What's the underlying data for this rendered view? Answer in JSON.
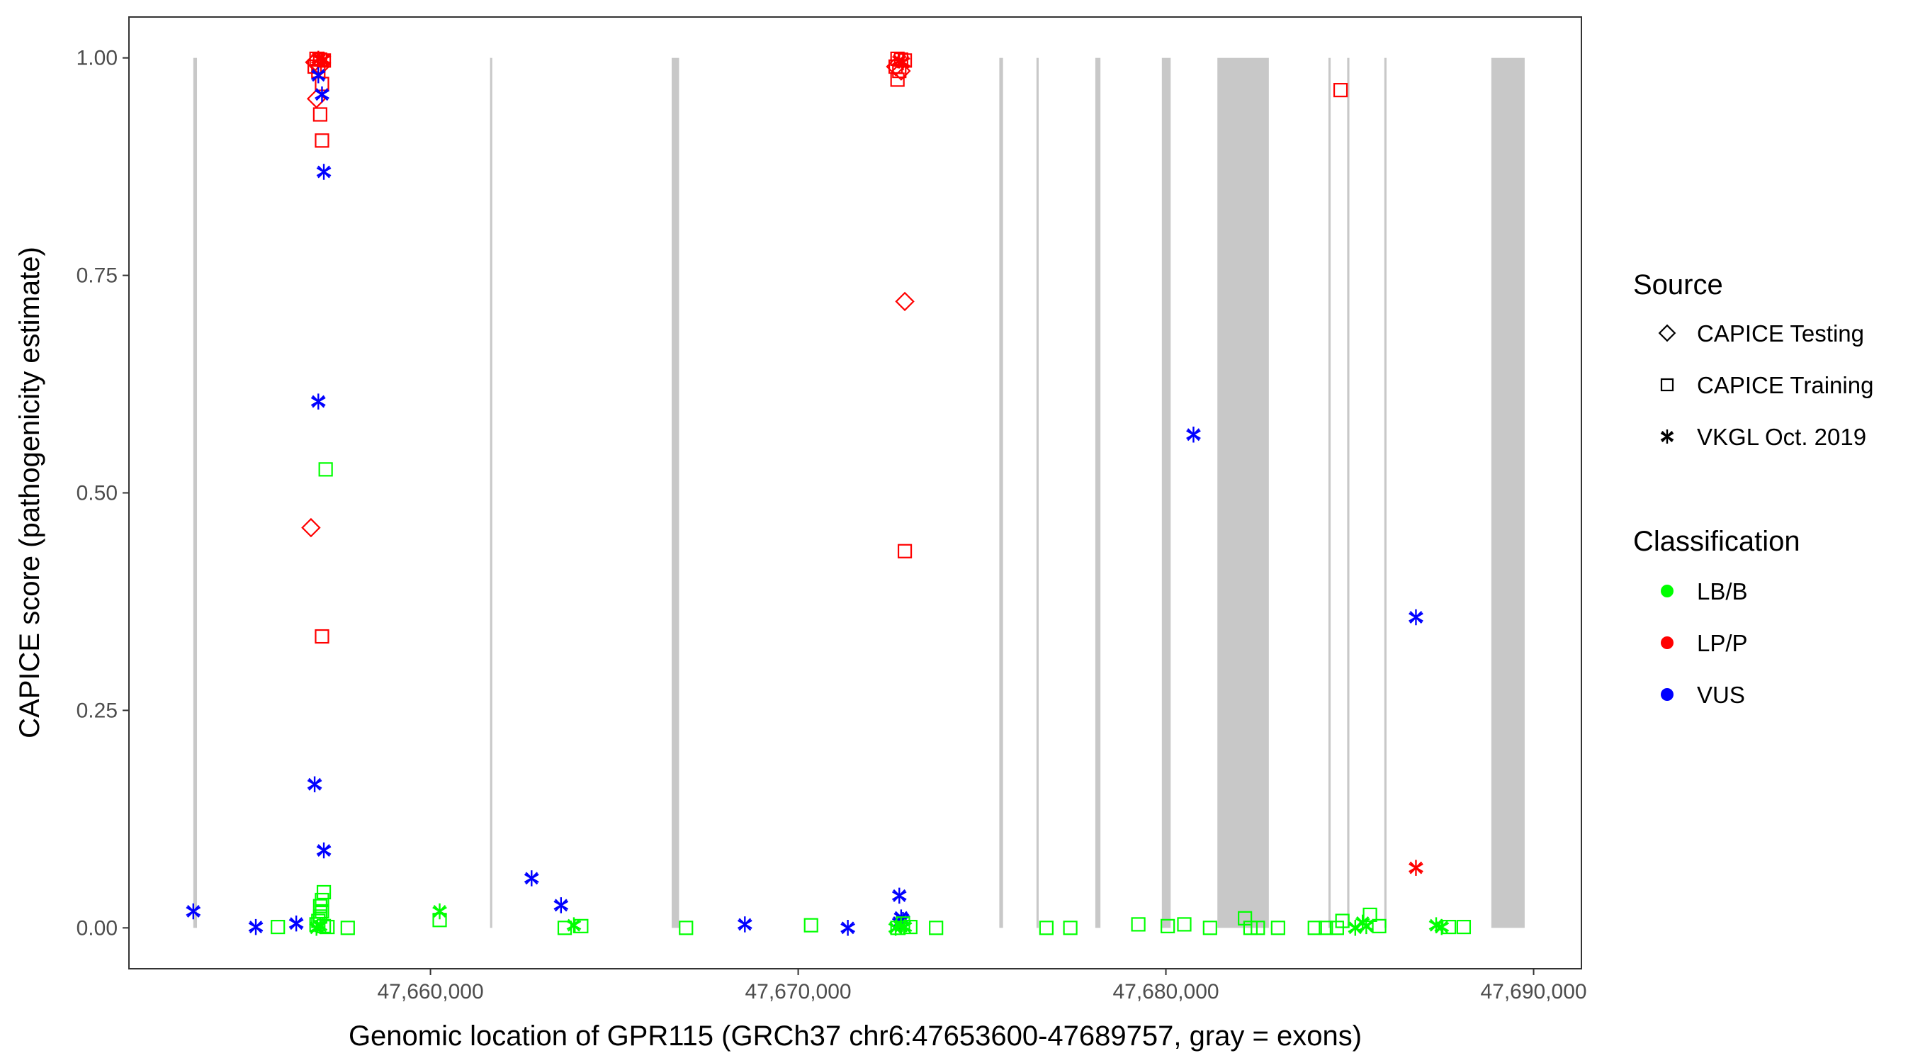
{
  "chart_data": {
    "type": "scatter",
    "xlabel": "Genomic location of GPR115 (GRCh37 chr6:47653600-47689757, gray = exons)",
    "ylabel": "CAPICE score (pathogenicity estimate)",
    "xlim": [
      47651800,
      47691300
    ],
    "ylim": [
      -0.047,
      1.047
    ],
    "x_ticks": [
      47660000,
      47670000,
      47680000,
      47690000
    ],
    "x_tick_labels": [
      "47,660,000",
      "47,670,000",
      "47,680,000",
      "47,690,000"
    ],
    "y_ticks": [
      0,
      0.25,
      0.5,
      0.75,
      1.0
    ],
    "y_tick_labels": [
      "0.00",
      "0.25",
      "0.50",
      "0.75",
      "1.00"
    ],
    "grid": false,
    "legend_position": "right",
    "exon_color": "#c8c8c8",
    "exons": [
      [
        47653550,
        47653650
      ],
      [
        47661620,
        47661680
      ],
      [
        47666560,
        47666760
      ],
      [
        47675470,
        47675570
      ],
      [
        47676480,
        47676540
      ],
      [
        47678080,
        47678220
      ],
      [
        47679890,
        47680130
      ],
      [
        47681400,
        47682800
      ],
      [
        47684420,
        47684480
      ],
      [
        47684930,
        47684990
      ],
      [
        47685940,
        47686000
      ],
      [
        47688850,
        47689757
      ]
    ],
    "legends": {
      "source": {
        "title": "Source",
        "items": [
          {
            "label": "CAPICE Testing",
            "shape": "diamond"
          },
          {
            "label": "CAPICE Training",
            "shape": "square"
          },
          {
            "label": "VKGL Oct. 2019",
            "shape": "star"
          }
        ]
      },
      "classification": {
        "title": "Classification",
        "items": [
          {
            "label": "LB/B",
            "color": "#00ff00"
          },
          {
            "label": "LP/P",
            "color": "#ff0000"
          },
          {
            "label": "VUS",
            "color": "#0000ff"
          }
        ]
      }
    },
    "series": [
      {
        "classification": "LP/P",
        "source": "CAPICE Training",
        "color": "#ff0000",
        "shape": "square",
        "points": [
          [
            47656900,
            0.999
          ],
          [
            47657000,
            0.998
          ],
          [
            47657100,
            0.997
          ],
          [
            47656850,
            0.99
          ],
          [
            47656950,
            0.985
          ],
          [
            47657050,
            0.97
          ],
          [
            47657000,
            0.935
          ],
          [
            47657050,
            0.905
          ],
          [
            47657050,
            0.335
          ],
          [
            47672700,
            0.999
          ],
          [
            47672800,
            0.998
          ],
          [
            47672900,
            0.997
          ],
          [
            47672650,
            0.99
          ],
          [
            47672750,
            0.985
          ],
          [
            47672700,
            0.975
          ],
          [
            47672900,
            0.433
          ],
          [
            47684750,
            0.963
          ]
        ]
      },
      {
        "classification": "LP/P",
        "source": "CAPICE Testing",
        "color": "#ff0000",
        "shape": "diamond",
        "points": [
          [
            47656850,
            0.995
          ],
          [
            47657000,
            0.99
          ],
          [
            47656900,
            0.953
          ],
          [
            47656750,
            0.46
          ],
          [
            47672650,
            0.99
          ],
          [
            47672800,
            0.985
          ],
          [
            47672900,
            0.72
          ]
        ]
      },
      {
        "classification": "LP/P",
        "source": "VKGL Oct. 2019",
        "color": "#ff0000",
        "shape": "star",
        "points": [
          [
            47656950,
            0.999
          ],
          [
            47657100,
            0.998
          ],
          [
            47672750,
            0.997
          ],
          [
            47672850,
            0.995
          ],
          [
            47686800,
            0.069
          ]
        ]
      },
      {
        "classification": "VUS",
        "source": "VKGL Oct. 2019",
        "color": "#0000ff",
        "shape": "star",
        "points": [
          [
            47656950,
            0.98
          ],
          [
            47657050,
            0.958
          ],
          [
            47657100,
            0.869
          ],
          [
            47656950,
            0.605
          ],
          [
            47656850,
            0.165
          ],
          [
            47657100,
            0.089
          ],
          [
            47653550,
            0.019
          ],
          [
            47655250,
            0.001
          ],
          [
            47656350,
            0.005
          ],
          [
            47662750,
            0.057
          ],
          [
            47663550,
            0.026
          ],
          [
            47668550,
            0.004
          ],
          [
            47671350,
            0.0
          ],
          [
            47672750,
            0.037
          ],
          [
            47672800,
            0.012
          ],
          [
            47672750,
            0.006
          ],
          [
            47672850,
            0.009
          ],
          [
            47680750,
            0.567
          ],
          [
            47686800,
            0.357
          ]
        ]
      },
      {
        "classification": "LB/B",
        "source": "VKGL Oct. 2019",
        "color": "#00ff00",
        "shape": "star",
        "points": [
          [
            47660250,
            0.019
          ],
          [
            47663900,
            0.003
          ],
          [
            47672650,
            0.0
          ],
          [
            47672800,
            0.002
          ],
          [
            47672900,
            0.001
          ],
          [
            47657000,
            0.002
          ],
          [
            47656900,
            0.0
          ],
          [
            47685150,
            0.0
          ],
          [
            47685350,
            0.006
          ],
          [
            47685450,
            0.002
          ],
          [
            47687350,
            0.003
          ],
          [
            47687500,
            0.001
          ]
        ]
      },
      {
        "classification": "LB/B",
        "source": "CAPICE Training",
        "color": "#00ff00",
        "shape": "square",
        "points": [
          [
            47657150,
            0.527
          ],
          [
            47657100,
            0.041
          ],
          [
            47657050,
            0.032
          ],
          [
            47657000,
            0.025
          ],
          [
            47657050,
            0.019
          ],
          [
            47657000,
            0.013
          ],
          [
            47656950,
            0.008
          ],
          [
            47656900,
            0.004
          ],
          [
            47657100,
            0.002
          ],
          [
            47657200,
            0.001
          ],
          [
            47655850,
            0.001
          ],
          [
            47657750,
            0.0
          ],
          [
            47660250,
            0.009
          ],
          [
            47663650,
            0.0
          ],
          [
            47664100,
            0.002
          ],
          [
            47666950,
            0.0
          ],
          [
            47670350,
            0.003
          ],
          [
            47672700,
            0.0
          ],
          [
            47672850,
            0.005
          ],
          [
            47673050,
            0.001
          ],
          [
            47673750,
            0.0
          ],
          [
            47676750,
            0.0
          ],
          [
            47677400,
            0.0
          ],
          [
            47679250,
            0.004
          ],
          [
            47680050,
            0.002
          ],
          [
            47680500,
            0.004
          ],
          [
            47681200,
            0.0
          ],
          [
            47682150,
            0.011
          ],
          [
            47682300,
            0.0
          ],
          [
            47682500,
            0.0
          ],
          [
            47683050,
            0.0
          ],
          [
            47684050,
            0.0
          ],
          [
            47684350,
            0.0
          ],
          [
            47684650,
            0.0
          ],
          [
            47684800,
            0.008
          ],
          [
            47685550,
            0.015
          ],
          [
            47685800,
            0.002
          ],
          [
            47687700,
            0.001
          ],
          [
            47688100,
            0.001
          ]
        ]
      }
    ]
  }
}
